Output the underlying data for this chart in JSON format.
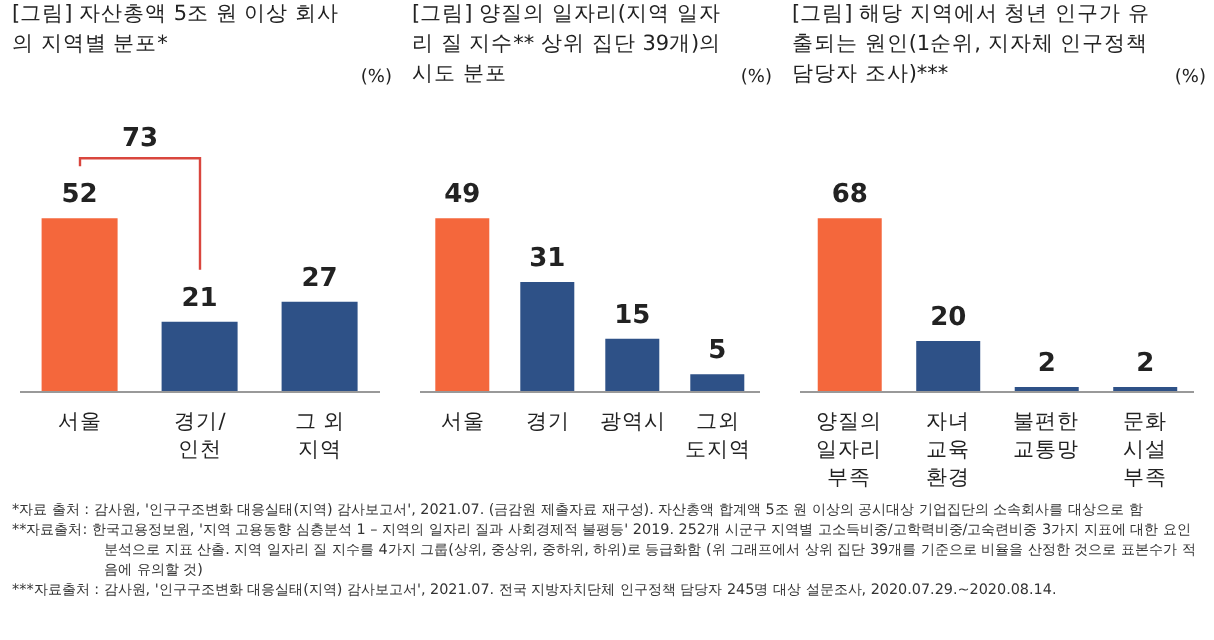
{
  "chart_data": [
    {
      "type": "bar",
      "title": "[그림] 자산총액 5조 원 이상 회사의 지역별 분포*",
      "ylabel": "(%)",
      "categories": [
        "서울",
        "경기/\n인천",
        "그 외\n지역"
      ],
      "values": [
        52,
        21,
        27
      ],
      "colors": [
        "#f4673c",
        "#2e5187",
        "#2e5187"
      ],
      "data_labels": true,
      "annotations": [
        "73"
      ]
    },
    {
      "type": "bar",
      "title": "[그림] 양질의 일자리(지역 일자리 질 지수** 상위 집단 39개)의 시도 분포",
      "ylabel": "(%)",
      "categories": [
        "서울",
        "경기",
        "광역시",
        "그외\n도지역"
      ],
      "values": [
        49,
        31,
        15,
        5
      ],
      "colors": [
        "#f4673c",
        "#2e5187",
        "#2e5187",
        "#2e5187"
      ],
      "data_labels": true
    },
    {
      "type": "bar",
      "title": "[그림] 해당 지역에서 청년 인구가 유출되는 원인(1순위, 지자체 인구정책 담당자 조사)***",
      "ylabel": "(%)",
      "categories": [
        "양질의\n일자리\n부족",
        "자녀\n교육\n환경",
        "불편한\n교통망",
        "문화\n시설\n부족"
      ],
      "values": [
        68,
        20,
        2,
        2
      ],
      "colors": [
        "#f4673c",
        "#2e5187",
        "#2e5187",
        "#2e5187"
      ],
      "data_labels": true,
      "annotations": [
        "*자료 출처 : 감사원, '인구구조변화 대응실태(지역) 감사보고서', 2021.07. (금감원 제출자료 재구성). 자산총액 합계액 5조 원 이상의 공시대상 기업집단의 소속회사를 대상으로 함",
        "**자료출처: 한국고용정보원, '지역 고용동향 심층분석 1 – 지역의 일자리 질과 사회경제적 불평등' 2019. 252개 시군구 지역별 고소득비중/고학력비중/고숙련비중 3가지 지표에 대한 요인분석으로 지표 산출. 지역 일자리 질 지수를 4가지 그룹(상위, 중상위, 중하위, 하위)로 등급화함 (위 그래프에서 상위 집단 39개를 기준으로 비율을 산정한 것으로 표본수가 적음에 유의할 것)",
        "***자료출처 : 감사원, '인구구조변화 대응실태(지역) 감사보고서', 2021.07. 전국 지방자치단체 인구정책 담당자 245명 대상 설문조사, 2020.07.29.~2020.08.14."
      ]
    }
  ]
}
